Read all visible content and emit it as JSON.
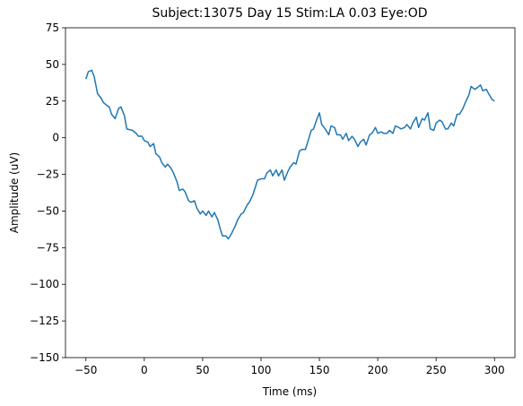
{
  "chart_data": {
    "type": "line",
    "title": "Subject:13075 Day 15 Stim:LA 0.03 Eye:OD",
    "x_label": "Time (ms)",
    "y_label": "Amplitude (uV)",
    "x": [
      -50,
      -48,
      -45,
      -43,
      -40,
      -37,
      -35,
      -32,
      -30,
      -28,
      -25,
      -22,
      -20,
      -17,
      -15,
      -10,
      -7,
      -5,
      -2,
      0,
      3,
      5,
      8,
      10,
      13,
      15,
      18,
      20,
      23,
      25,
      28,
      30,
      33,
      35,
      38,
      40,
      43,
      45,
      48,
      50,
      53,
      55,
      58,
      60,
      63,
      65,
      67,
      70,
      72,
      75,
      78,
      80,
      83,
      85,
      88,
      90,
      93,
      95,
      97,
      100,
      103,
      105,
      108,
      110,
      113,
      115,
      118,
      120,
      123,
      125,
      128,
      130,
      133,
      135,
      138,
      140,
      143,
      145,
      148,
      150,
      152,
      155,
      158,
      160,
      163,
      165,
      168,
      170,
      173,
      175,
      178,
      180,
      183,
      185,
      188,
      190,
      193,
      195,
      198,
      200,
      203,
      205,
      208,
      210,
      213,
      215,
      218,
      220,
      223,
      225,
      228,
      230,
      233,
      235,
      238,
      240,
      243,
      245,
      248,
      250,
      253,
      255,
      258,
      260,
      263,
      265,
      268,
      270,
      273,
      275,
      278,
      280,
      283,
      285,
      288,
      290,
      293,
      295,
      298,
      300
    ],
    "series": [
      {
        "name": "OD",
        "color": "#1f77b4",
        "values": [
          40,
          45,
          46,
          42,
          30,
          27,
          24,
          22,
          21,
          16,
          13,
          20,
          21,
          15,
          6,
          5,
          3,
          1,
          1,
          -2,
          -3,
          -6,
          -4,
          -11,
          -13,
          -17,
          -20,
          -18,
          -21,
          -24,
          -30,
          -36,
          -35,
          -37,
          -43,
          -44,
          -43,
          -48,
          -52,
          -50,
          -53,
          -50,
          -54,
          -51,
          -56,
          -62,
          -67,
          -67,
          -69,
          -65,
          -60,
          -56,
          -52,
          -51,
          -46,
          -44,
          -39,
          -34,
          -29,
          -28,
          -28,
          -24,
          -22,
          -26,
          -22,
          -26,
          -22,
          -29,
          -23,
          -20,
          -17,
          -18,
          -9,
          -8,
          -8,
          -3,
          5,
          6,
          13,
          17,
          9,
          6,
          2,
          8,
          7,
          2,
          2,
          -1,
          3,
          -2,
          1,
          -1,
          -6,
          -3,
          -1,
          -5,
          2,
          3,
          7,
          3,
          4,
          3,
          3,
          5,
          3,
          8,
          7,
          6,
          7,
          9,
          6,
          10,
          14,
          7,
          13,
          12,
          17,
          6,
          5,
          10,
          12,
          11,
          6,
          6,
          10,
          8,
          16,
          16,
          20,
          24,
          29,
          35,
          33,
          34,
          36,
          32,
          33,
          30,
          26,
          25
        ]
      }
    ],
    "xlim": [
      -67.5,
      317.5
    ],
    "ylim": [
      -150,
      75
    ],
    "xticks": [
      {
        "value": -50,
        "label": "−50"
      },
      0,
      50,
      100,
      150,
      200,
      250,
      300
    ],
    "yticks": [
      {
        "value": -150,
        "label": "−150"
      },
      {
        "value": -125,
        "label": "−125"
      },
      {
        "value": -100,
        "label": "−100"
      },
      {
        "value": -75,
        "label": "−75"
      },
      {
        "value": -50,
        "label": "−50"
      },
      {
        "value": -25,
        "label": "−25"
      },
      0,
      25,
      50,
      75
    ]
  }
}
